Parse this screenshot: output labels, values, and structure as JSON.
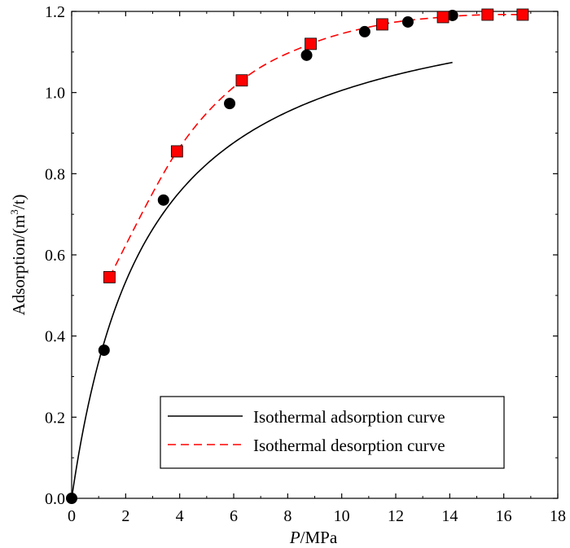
{
  "chart_data": {
    "type": "scatter",
    "title": "",
    "xlabel": {
      "italic": "P",
      "rest": "/MPa"
    },
    "ylabel": {
      "base": "Adsorption/(m",
      "sup": "3",
      "tail": "/t)"
    },
    "xlim": [
      0,
      18
    ],
    "ylim": [
      0.0,
      1.2
    ],
    "x_ticks": [
      0,
      2,
      4,
      6,
      8,
      10,
      12,
      14,
      16,
      18
    ],
    "x_tick_labels": [
      "0",
      "2",
      "4",
      "6",
      "8",
      "10",
      "12",
      "14",
      "16",
      "18"
    ],
    "y_ticks": [
      0.0,
      0.2,
      0.4,
      0.6,
      0.8,
      1.0,
      1.2
    ],
    "y_tick_labels": [
      "0.0",
      "0.2",
      "0.4",
      "0.6",
      "0.8",
      "1.0",
      "1.2"
    ],
    "grid": false,
    "legend_position": "bottom-right",
    "series": [
      {
        "name": "Isothermal adsorption curve",
        "marker": "circle",
        "marker_color": "#000000",
        "line_style": "solid",
        "line_color": "#000000",
        "points": [
          [
            0.0,
            0.0
          ],
          [
            1.2,
            0.365
          ],
          [
            3.4,
            0.735
          ],
          [
            5.85,
            0.973
          ],
          [
            8.7,
            1.092
          ],
          [
            10.85,
            1.15
          ],
          [
            12.45,
            1.174
          ],
          [
            13.75,
            1.187
          ],
          [
            14.1,
            1.19
          ]
        ],
        "fit_model": "langmuir",
        "fit_params": {
          "a": 1.29,
          "b": 0.353
        }
      },
      {
        "name": "Isothermal desorption curve",
        "marker": "square",
        "marker_color": "#ff0000",
        "line_style": "dashed",
        "line_color": "#ff0000",
        "points": [
          [
            1.4,
            0.545
          ],
          [
            3.9,
            0.855
          ],
          [
            6.3,
            1.03
          ],
          [
            8.85,
            1.12
          ],
          [
            11.5,
            1.168
          ],
          [
            13.75,
            1.186
          ],
          [
            15.4,
            1.192
          ],
          [
            16.7,
            1.192
          ]
        ]
      }
    ]
  }
}
